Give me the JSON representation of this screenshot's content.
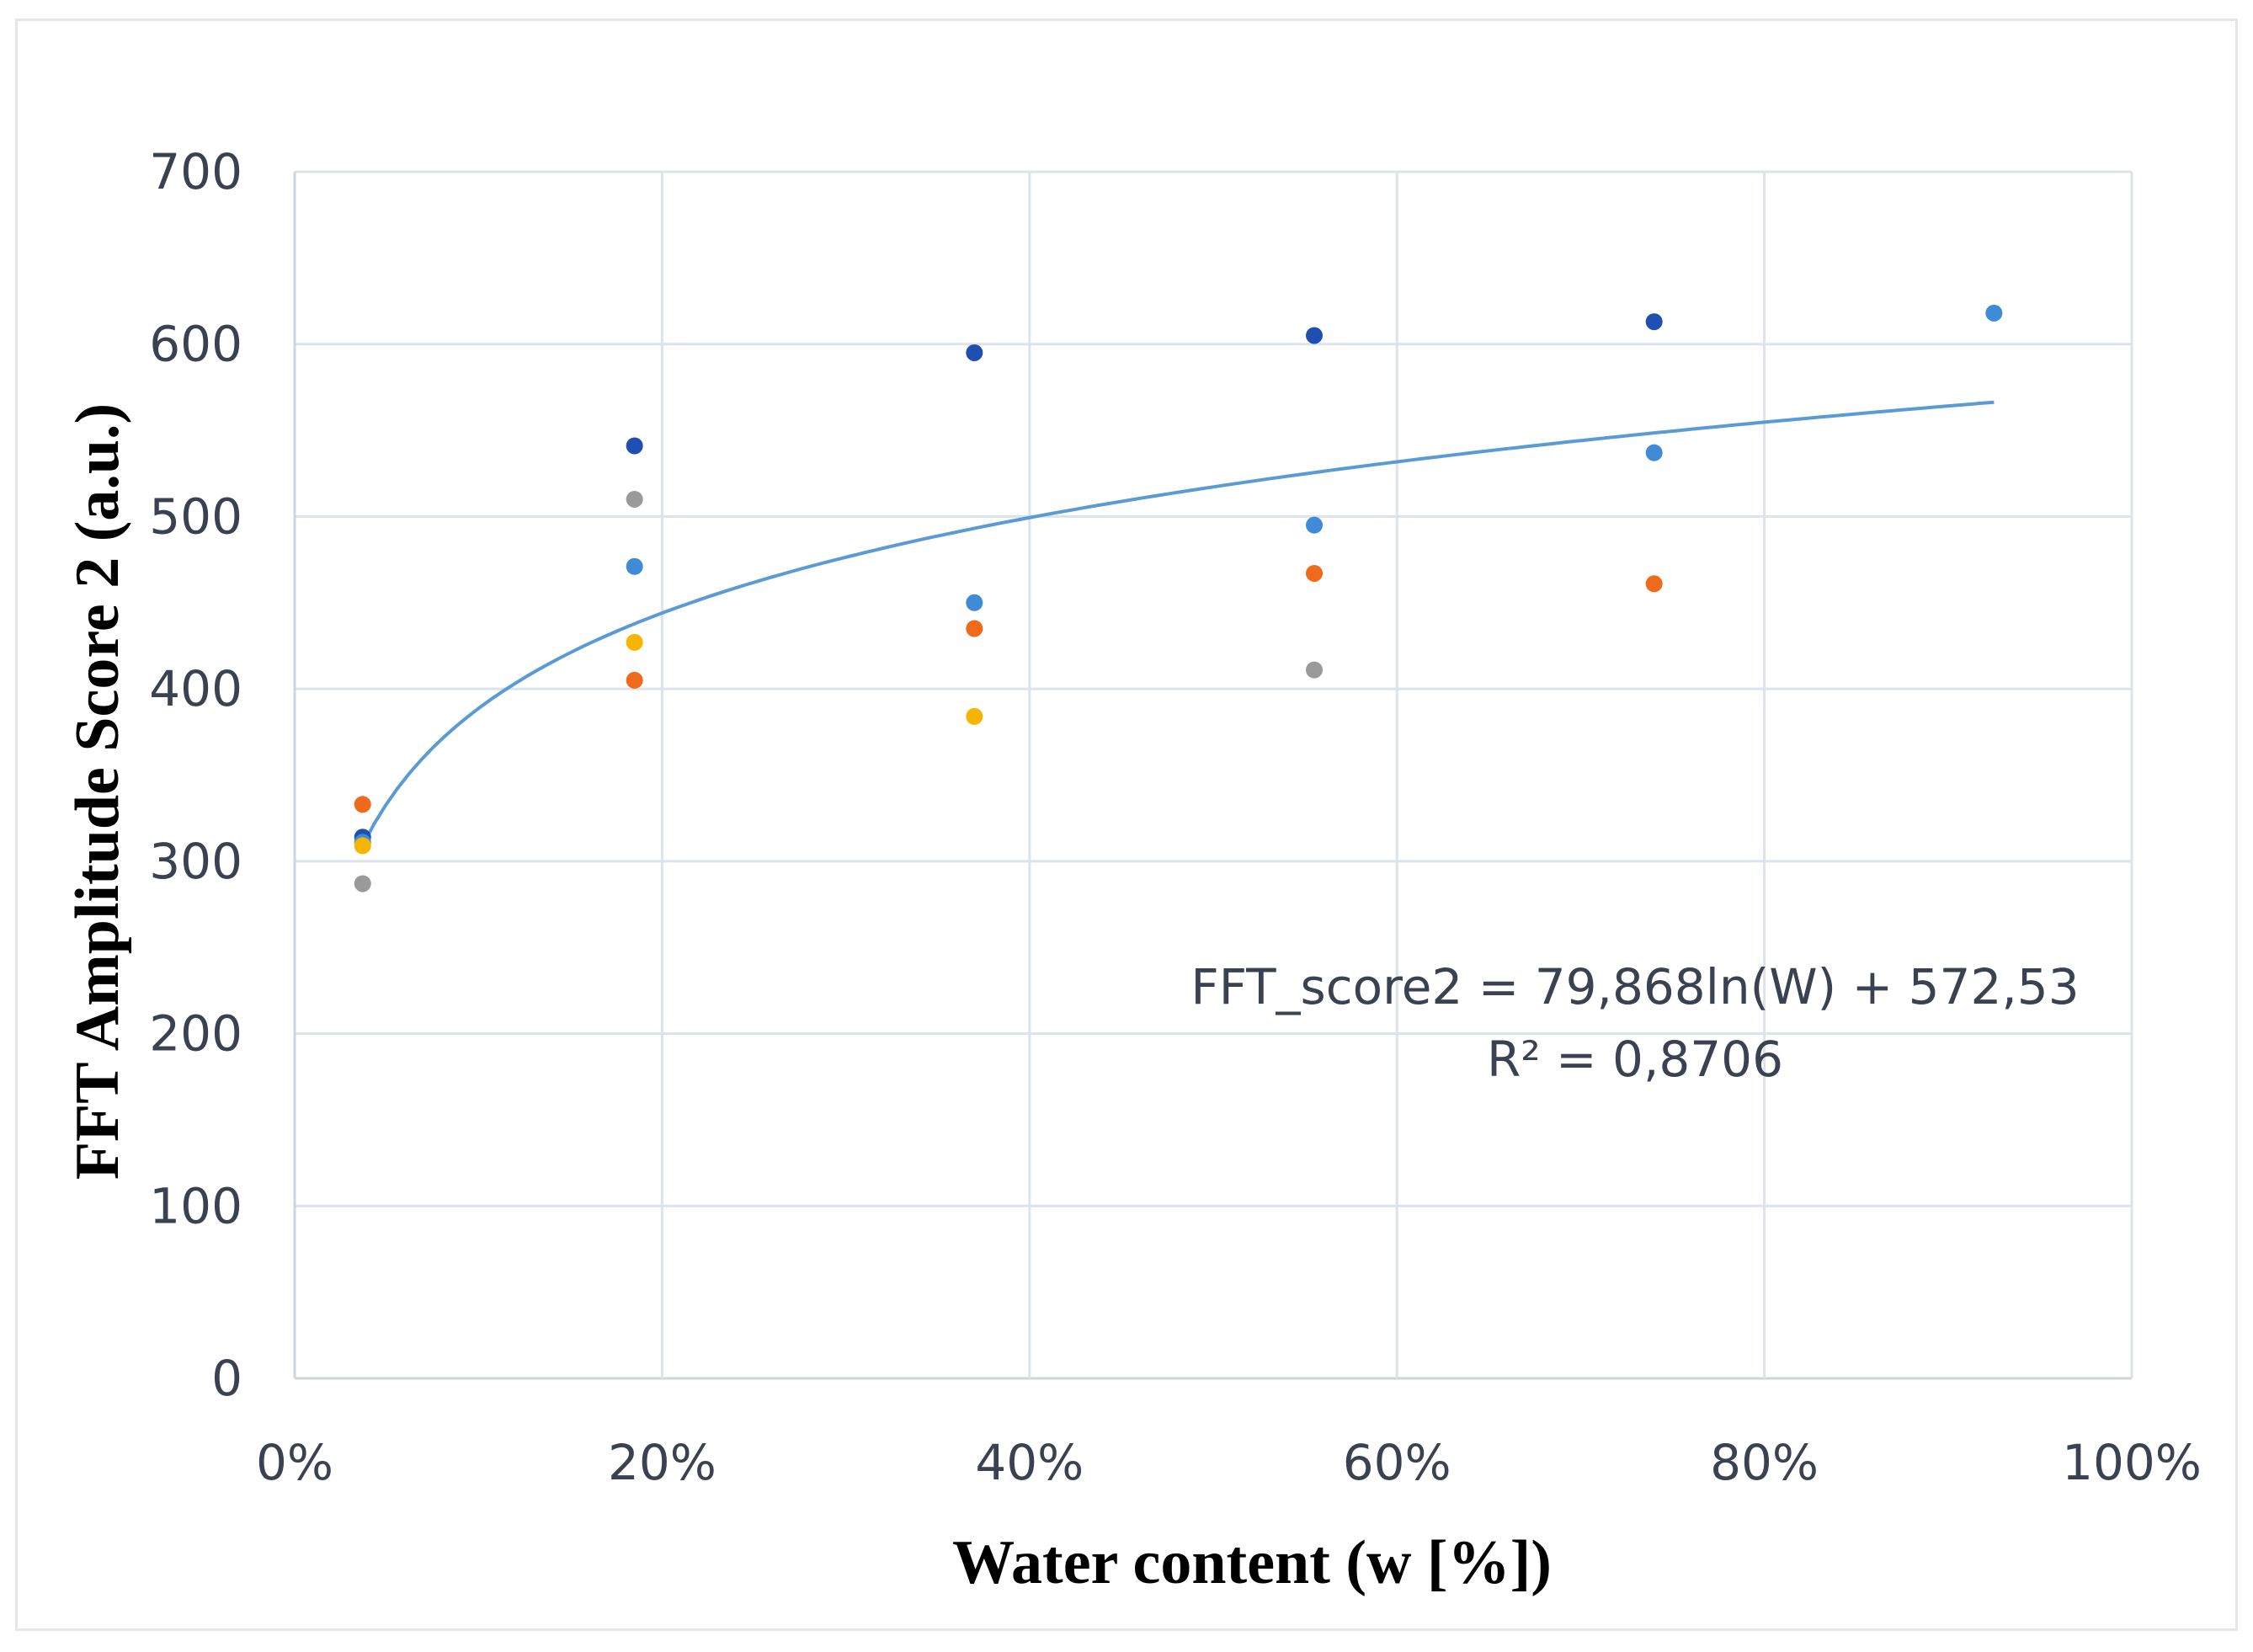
{
  "chart_data": {
    "type": "scatter",
    "title": "",
    "xlabel": "Water content (w [%])",
    "ylabel": "FFT Amplitude Score 2 (a.u.)",
    "xlim": [
      0,
      100
    ],
    "ylim": [
      0,
      700
    ],
    "x_ticks": [
      "0%",
      "20%",
      "40%",
      "60%",
      "80%",
      "100%"
    ],
    "y_ticks": [
      "0",
      "100",
      "200",
      "300",
      "400",
      "500",
      "600",
      "700"
    ],
    "grid": true,
    "legend": "none",
    "series": [
      {
        "name": "series-dark-blue",
        "color": "#1f4fb0",
        "points": [
          [
            3.7,
            314
          ],
          [
            18.5,
            541
          ],
          [
            37.0,
            595
          ],
          [
            55.5,
            605
          ],
          [
            74.0,
            613
          ]
        ]
      },
      {
        "name": "series-light-blue",
        "color": "#3f8bd6",
        "points": [
          [
            3.7,
            311
          ],
          [
            18.5,
            471
          ],
          [
            37.0,
            450
          ],
          [
            55.5,
            495
          ],
          [
            74.0,
            537
          ],
          [
            92.5,
            618
          ]
        ]
      },
      {
        "name": "series-orange",
        "color": "#ef6a1b",
        "points": [
          [
            3.7,
            333
          ],
          [
            18.5,
            405
          ],
          [
            37.0,
            435
          ],
          [
            55.5,
            467
          ],
          [
            74.0,
            461
          ]
        ]
      },
      {
        "name": "series-gray",
        "color": "#9a9a9a",
        "points": [
          [
            3.7,
            287
          ],
          [
            18.5,
            510
          ],
          [
            55.5,
            411
          ]
        ]
      },
      {
        "name": "series-yellow",
        "color": "#f7b500",
        "points": [
          [
            3.7,
            309
          ],
          [
            18.5,
            427
          ],
          [
            37.0,
            384
          ]
        ]
      }
    ],
    "trendline": {
      "type": "logarithmic",
      "color": "#5b9bd5",
      "a": 79.868,
      "b": 572.53,
      "x_range": [
        3.7,
        92.5
      ],
      "equation_text": "FFT_score2 = 79,868ln(W) + 572,53",
      "r2_text": "R² = 0,8706"
    }
  }
}
